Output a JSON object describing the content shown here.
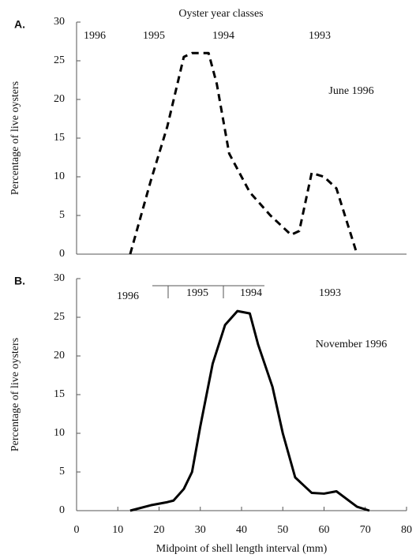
{
  "chart_data": [
    {
      "type": "line",
      "panel": "A.",
      "title": "Oyster year classes",
      "ylabel": "Percentage of live oysters",
      "annotation": "June 1996",
      "year_classes": [
        "1996",
        "1995",
        "1994",
        "1993"
      ],
      "x": [
        13,
        18,
        22,
        26,
        28,
        32,
        34,
        37,
        42,
        47,
        52,
        54,
        57,
        60,
        63,
        68
      ],
      "values": [
        0,
        9.5,
        16.5,
        25.5,
        26,
        26,
        22,
        13,
        8,
        5,
        2.5,
        3,
        10.5,
        10,
        8.5,
        0
      ],
      "color": "#000000",
      "dashed": true,
      "xlim": [
        0,
        80
      ],
      "ylim": [
        0,
        30
      ],
      "yticks": [
        0,
        5,
        10,
        15,
        20,
        25,
        30
      ]
    },
    {
      "type": "line",
      "panel": "B.",
      "ylabel": "Percentage of live oysters",
      "xlabel": "Midpoint of shell length interval (mm)",
      "annotation": "November 1996",
      "year_classes": [
        "1996",
        "1995",
        "1994",
        "1993"
      ],
      "x": [
        13,
        18,
        22,
        23.5,
        26,
        28,
        30,
        33,
        36,
        39,
        42,
        44,
        47.5,
        50,
        53,
        57,
        60,
        63,
        65,
        68,
        71
      ],
      "values": [
        0,
        0.7,
        1.1,
        1.3,
        2.8,
        5,
        10.9,
        19,
        24,
        25.8,
        25.5,
        21.5,
        16,
        10,
        4.3,
        2.3,
        2.2,
        2.5,
        1.7,
        0.5,
        0
      ],
      "color": "#000000",
      "dashed": false,
      "xlim": [
        0,
        80
      ],
      "xticks": [
        0,
        10,
        20,
        30,
        40,
        50,
        60,
        70,
        80
      ],
      "ylim": [
        0,
        30
      ],
      "yticks": [
        0,
        5,
        10,
        15,
        20,
        25,
        30
      ]
    }
  ]
}
